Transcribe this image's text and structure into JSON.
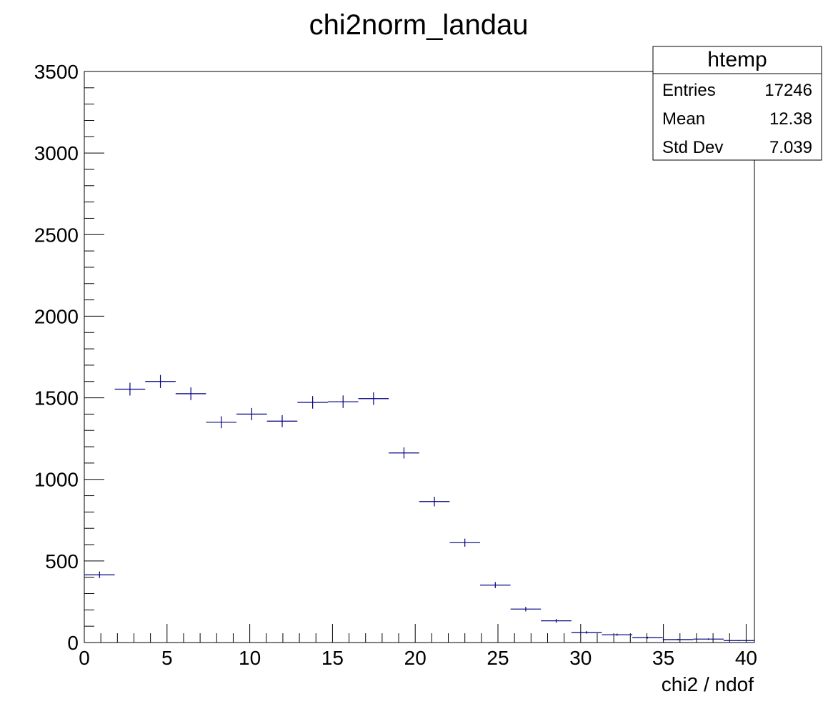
{
  "chart_data": {
    "type": "bar",
    "title": "chi2norm_landau",
    "xlabel": "chi2 / ndof",
    "ylabel": "",
    "xlim": [
      0,
      40.5
    ],
    "ylim": [
      0,
      3500
    ],
    "x_ticks": [
      "0",
      "5",
      "10",
      "15",
      "20",
      "25",
      "30",
      "35",
      "40"
    ],
    "y_ticks": [
      "0",
      "500",
      "1000",
      "1500",
      "2000",
      "2500",
      "3000",
      "3500"
    ],
    "bins": {
      "low": 0,
      "width": 1.84,
      "values": [
        415,
        1553,
        1600,
        1525,
        1350,
        1400,
        1357,
        1472,
        1476,
        1495,
        1162,
        864,
        612,
        352,
        205,
        133,
        62,
        48,
        30,
        18,
        21,
        12
      ]
    },
    "marker_color": "#000080",
    "legend": "top-right",
    "stats_box": {
      "name": "htemp",
      "rows": [
        {
          "label": "Entries",
          "value": "17246"
        },
        {
          "label": "Mean",
          "value": "12.38"
        },
        {
          "label": "Std Dev",
          "value": "7.039"
        }
      ]
    }
  }
}
